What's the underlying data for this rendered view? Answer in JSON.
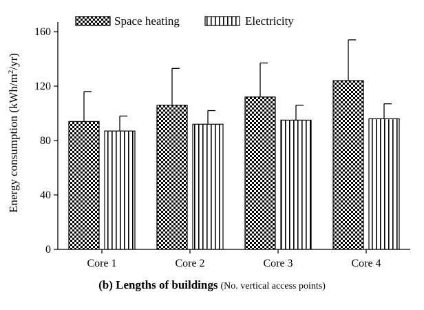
{
  "chart_data": {
    "type": "bar",
    "title": "",
    "caption_main": "(b) Lengths of buildings",
    "caption_note": "(No. vertical access points)",
    "xlabel": "",
    "ylabel_prefix": "Energy consumption (kWh/m",
    "ylabel_sup": "2",
    "ylabel_suffix": "/yr)",
    "ylim": [
      0,
      160
    ],
    "yticks": [
      0,
      40,
      80,
      120,
      160
    ],
    "categories": [
      "Core 1",
      "Core 2",
      "Core 3",
      "Core 4"
    ],
    "series": [
      {
        "name": "Space heating",
        "pattern": "checker",
        "values": [
          94,
          106,
          112,
          124
        ],
        "errors": [
          22,
          27,
          25,
          30
        ]
      },
      {
        "name": "Electricity",
        "pattern": "vertical-stripes",
        "values": [
          87,
          92,
          95,
          96
        ],
        "errors": [
          11,
          10,
          11,
          11
        ]
      }
    ],
    "legend_position": "top",
    "grid": false
  }
}
